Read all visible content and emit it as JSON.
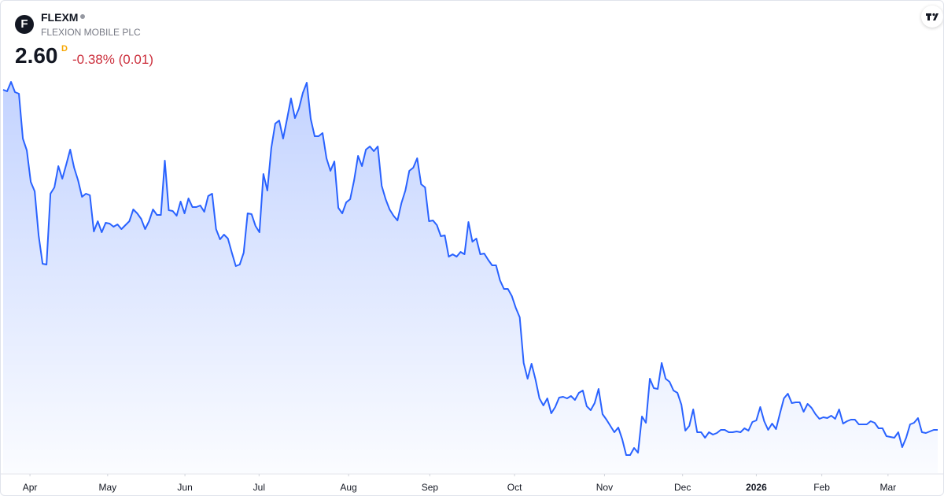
{
  "header": {
    "logo": "F",
    "symbol": "FLEXM",
    "company": "FLEXION MOBILE PLC",
    "price": "2.60",
    "interval": "D",
    "change": "-0.38% (0.01)"
  },
  "chart_data": {
    "type": "area",
    "color": "#2962ff",
    "values": [
      6.92,
      6.9,
      7.02,
      6.89,
      6.87,
      6.3,
      6.15,
      5.75,
      5.63,
      5.07,
      4.71,
      4.7,
      5.6,
      5.68,
      5.95,
      5.79,
      5.97,
      6.16,
      5.93,
      5.77,
      5.56,
      5.6,
      5.58,
      5.12,
      5.25,
      5.11,
      5.23,
      5.22,
      5.18,
      5.21,
      5.15,
      5.2,
      5.25,
      5.4,
      5.35,
      5.28,
      5.15,
      5.25,
      5.4,
      5.33,
      5.33,
      6.02,
      5.39,
      5.38,
      5.32,
      5.5,
      5.35,
      5.54,
      5.43,
      5.43,
      5.45,
      5.37,
      5.57,
      5.6,
      5.15,
      5.02,
      5.08,
      5.03,
      4.85,
      4.68,
      4.7,
      4.85,
      5.35,
      5.34,
      5.19,
      5.11,
      5.85,
      5.64,
      6.18,
      6.49,
      6.53,
      6.3,
      6.55,
      6.81,
      6.56,
      6.68,
      6.88,
      7.01,
      6.55,
      6.33,
      6.33,
      6.37,
      6.05,
      5.89,
      6.01,
      5.42,
      5.35,
      5.49,
      5.53,
      5.77,
      6.08,
      5.95,
      6.16,
      6.2,
      6.14,
      6.2,
      5.7,
      5.53,
      5.4,
      5.32,
      5.26,
      5.48,
      5.64,
      5.89,
      5.93,
      6.05,
      5.72,
      5.68,
      5.25,
      5.26,
      5.2,
      5.06,
      5.07,
      4.8,
      4.83,
      4.8,
      4.86,
      4.83,
      5.24,
      4.99,
      5.03,
      4.83,
      4.84,
      4.76,
      4.69,
      4.69,
      4.5,
      4.39,
      4.39,
      4.3,
      4.15,
      4.03,
      3.45,
      3.25,
      3.44,
      3.24,
      3.0,
      2.91,
      3.0,
      2.81,
      2.89,
      3.01,
      3.02,
      3.0,
      3.03,
      2.98,
      3.07,
      3.1,
      2.9,
      2.85,
      2.94,
      3.12,
      2.8,
      2.73,
      2.65,
      2.57,
      2.63,
      2.48,
      2.28,
      2.28,
      2.37,
      2.31,
      2.77,
      2.69,
      3.25,
      3.13,
      3.12,
      3.45,
      3.25,
      3.21,
      3.1,
      3.07,
      2.92,
      2.59,
      2.65,
      2.86,
      2.57,
      2.57,
      2.5,
      2.57,
      2.54,
      2.56,
      2.6,
      2.6,
      2.57,
      2.57,
      2.58,
      2.57,
      2.62,
      2.59,
      2.7,
      2.72,
      2.89,
      2.71,
      2.6,
      2.68,
      2.61,
      2.81,
      3.0,
      3.06,
      2.94,
      2.95,
      2.95,
      2.83,
      2.93,
      2.88,
      2.8,
      2.74,
      2.76,
      2.75,
      2.78,
      2.74,
      2.86,
      2.68,
      2.71,
      2.73,
      2.73,
      2.67,
      2.67,
      2.67,
      2.71,
      2.69,
      2.62,
      2.62,
      2.52,
      2.51,
      2.5,
      2.57,
      2.38,
      2.5,
      2.67,
      2.69,
      2.75,
      2.57,
      2.56,
      2.58,
      2.6,
      2.6
    ],
    "ylim": [
      2.05,
      7.4
    ],
    "xticks": [
      {
        "value": 6.8,
        "label": "Apr"
      },
      {
        "value": 26.5,
        "label": "May"
      },
      {
        "value": 46.1,
        "label": "Jun"
      },
      {
        "value": 64.9,
        "label": "Jul"
      },
      {
        "value": 87.6,
        "label": "Aug"
      },
      {
        "value": 108.2,
        "label": "Sep"
      },
      {
        "value": 129.7,
        "label": "Oct"
      },
      {
        "value": 152.5,
        "label": "Nov"
      },
      {
        "value": 172.3,
        "label": "Dec"
      },
      {
        "value": 191.0,
        "label": "2026"
      },
      {
        "value": 207.6,
        "label": "Feb"
      },
      {
        "value": 224.4,
        "label": "Mar"
      }
    ]
  }
}
